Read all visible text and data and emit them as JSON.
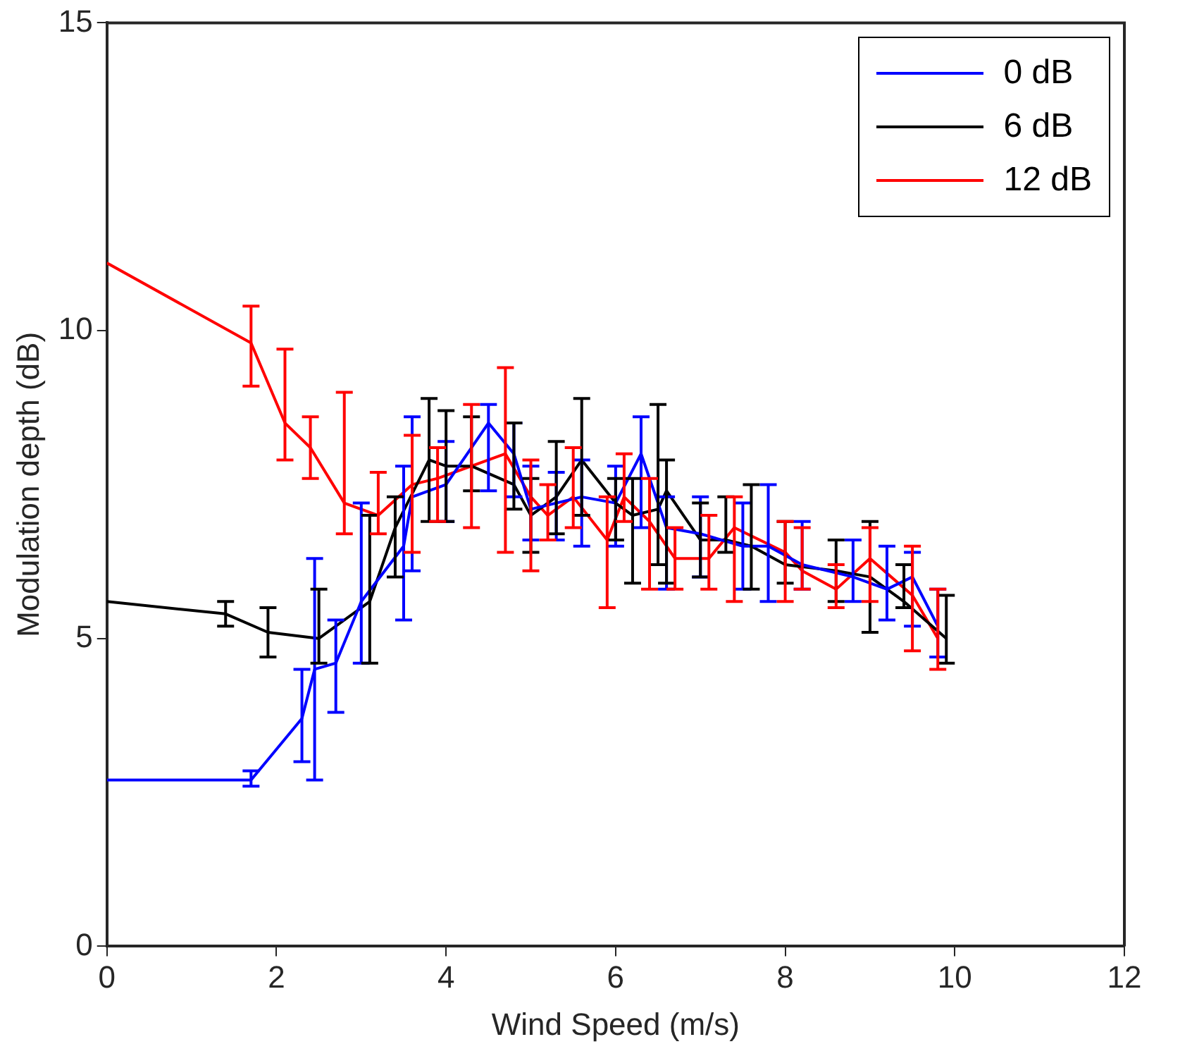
{
  "chart_data": {
    "type": "line",
    "xlabel": "Wind Speed (m/s)",
    "ylabel": "Modulation depth (dB)",
    "xlim": [
      0,
      12
    ],
    "xticks": [
      0,
      2,
      4,
      6,
      8,
      10,
      12
    ],
    "ylim": [
      0,
      15
    ],
    "yticks": [
      0,
      5,
      10,
      15
    ],
    "grid": false,
    "legend": "top right",
    "marker": "none",
    "line_style": "solid",
    "series": [
      {
        "name": "0 dB",
        "color": "#0000ff",
        "x": [
          0,
          1.7,
          2.3,
          2.45,
          2.7,
          3.0,
          3.5,
          3.6,
          4.0,
          4.5,
          4.8,
          5.0,
          5.3,
          5.6,
          6.0,
          6.3,
          6.6,
          7.0,
          7.5,
          7.8,
          8.2,
          8.8,
          9.2,
          9.5,
          9.8
        ],
        "values": [
          2.7,
          2.7,
          3.7,
          4.5,
          4.6,
          5.6,
          6.5,
          7.3,
          7.5,
          8.5,
          8.0,
          7.1,
          7.2,
          7.3,
          7.2,
          8.0,
          6.8,
          6.7,
          6.5,
          6.5,
          6.2,
          6.0,
          5.8,
          6.0,
          5.2
        ],
        "errors": [
          null,
          [
            2.6,
            2.85
          ],
          [
            3.0,
            4.5
          ],
          [
            2.7,
            6.3
          ],
          [
            3.8,
            5.3
          ],
          [
            4.6,
            7.2
          ],
          [
            5.3,
            7.8
          ],
          [
            6.1,
            8.6
          ],
          [
            6.9,
            8.2
          ],
          [
            7.4,
            8.8
          ],
          [
            7.3,
            8.5
          ],
          [
            6.6,
            7.8
          ],
          [
            6.6,
            7.7
          ],
          [
            6.5,
            7.9
          ],
          [
            6.5,
            7.8
          ],
          [
            6.8,
            8.6
          ],
          [
            5.8,
            7.3
          ],
          [
            6.0,
            7.3
          ],
          [
            5.8,
            7.2
          ],
          [
            5.6,
            7.5
          ],
          [
            5.8,
            6.9
          ],
          [
            5.6,
            6.6
          ],
          [
            5.3,
            6.5
          ],
          [
            5.2,
            6.4
          ],
          [
            4.7,
            5.8
          ]
        ]
      },
      {
        "name": "6 dB",
        "color": "#000000",
        "x": [
          0,
          1.4,
          1.9,
          2.5,
          3.1,
          3.4,
          3.8,
          4.0,
          4.3,
          4.8,
          5.0,
          5.3,
          5.6,
          6.0,
          6.2,
          6.5,
          6.6,
          7.0,
          7.3,
          7.6,
          8.0,
          8.6,
          9.0,
          9.4,
          9.9
        ],
        "values": [
          5.6,
          5.4,
          5.1,
          5.0,
          5.6,
          6.8,
          7.9,
          7.8,
          7.8,
          7.5,
          7.0,
          7.3,
          7.9,
          7.2,
          7.0,
          7.1,
          7.4,
          6.6,
          6.6,
          6.5,
          6.2,
          6.1,
          6.0,
          5.6,
          5.0
        ],
        "errors": [
          null,
          [
            5.2,
            5.6
          ],
          [
            4.7,
            5.5
          ],
          [
            4.6,
            5.8
          ],
          [
            4.6,
            7.0
          ],
          [
            6.0,
            7.3
          ],
          [
            6.9,
            8.9
          ],
          [
            6.9,
            8.7
          ],
          [
            7.4,
            8.6
          ],
          [
            7.1,
            8.5
          ],
          [
            6.4,
            7.6
          ],
          [
            6.7,
            8.2
          ],
          [
            7.0,
            8.9
          ],
          [
            6.6,
            7.6
          ],
          [
            5.9,
            7.6
          ],
          [
            6.2,
            8.8
          ],
          [
            5.9,
            7.9
          ],
          [
            6.0,
            7.2
          ],
          [
            6.4,
            7.3
          ],
          [
            5.8,
            7.5
          ],
          [
            5.9,
            6.9
          ],
          [
            5.6,
            6.6
          ],
          [
            5.1,
            6.9
          ],
          [
            5.5,
            6.2
          ],
          [
            4.6,
            5.7
          ]
        ]
      },
      {
        "name": "12 dB",
        "color": "#ff0000",
        "x": [
          0,
          1.7,
          2.1,
          2.4,
          2.8,
          3.2,
          3.6,
          3.9,
          4.3,
          4.7,
          5.0,
          5.2,
          5.5,
          5.9,
          6.1,
          6.4,
          6.7,
          7.1,
          7.4,
          8.0,
          8.2,
          8.6,
          9.0,
          9.5,
          9.8
        ],
        "values": [
          11.1,
          9.8,
          8.5,
          8.1,
          7.2,
          7.0,
          7.5,
          7.6,
          7.8,
          8.0,
          7.3,
          7.0,
          7.3,
          6.6,
          7.3,
          6.9,
          6.3,
          6.3,
          6.8,
          6.4,
          6.1,
          5.8,
          6.3,
          5.7,
          5.0
        ],
        "errors": [
          null,
          [
            9.1,
            10.4
          ],
          [
            7.9,
            9.7
          ],
          [
            7.6,
            8.6
          ],
          [
            6.7,
            9.0
          ],
          [
            6.7,
            7.7
          ],
          [
            6.4,
            8.3
          ],
          [
            6.9,
            8.1
          ],
          [
            6.8,
            8.8
          ],
          [
            6.4,
            9.4
          ],
          [
            6.1,
            7.9
          ],
          [
            6.6,
            7.5
          ],
          [
            6.8,
            8.1
          ],
          [
            5.5,
            7.3
          ],
          [
            6.9,
            8.0
          ],
          [
            5.8,
            7.6
          ],
          [
            5.8,
            6.8
          ],
          [
            5.8,
            7.0
          ],
          [
            5.6,
            7.3
          ],
          [
            5.6,
            6.9
          ],
          [
            5.8,
            6.8
          ],
          [
            5.5,
            6.2
          ],
          [
            5.6,
            6.8
          ],
          [
            4.8,
            6.5
          ],
          [
            4.5,
            5.8
          ]
        ]
      }
    ]
  }
}
